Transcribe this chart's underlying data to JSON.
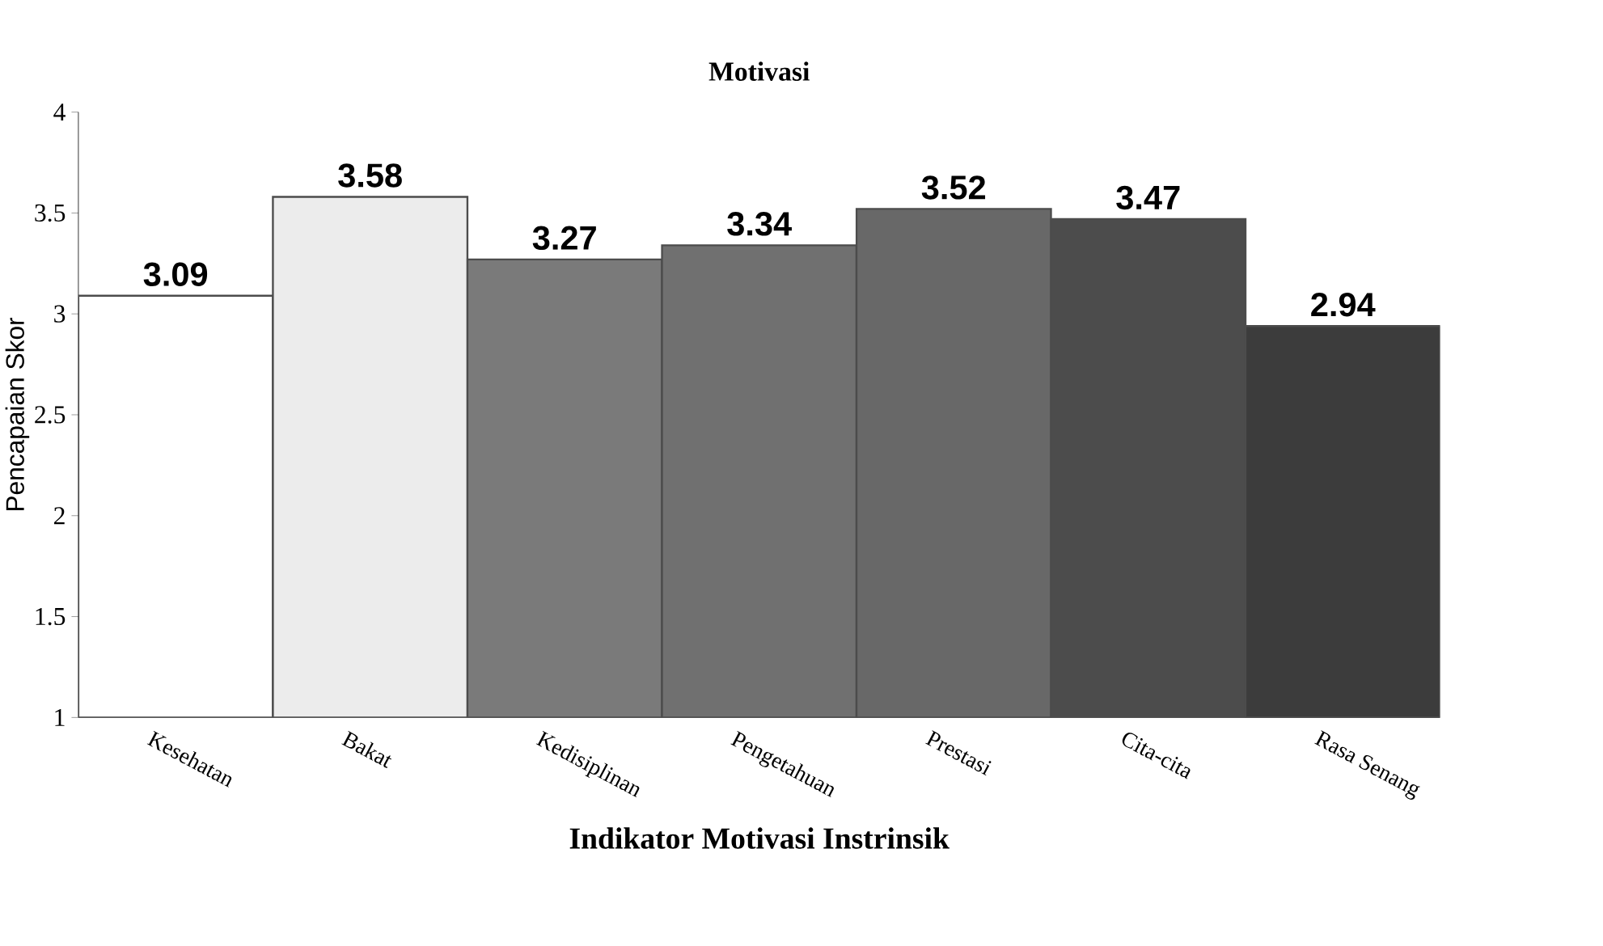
{
  "chart_data": {
    "type": "bar",
    "title": "Motivasi",
    "xlabel": "Indikator Motivasi Instrinsik",
    "ylabel": "Pencapaian Skor",
    "categories": [
      "Kesehatan",
      "Bakat",
      "Kedisiplinan",
      "Pengetahuan",
      "Prestasi",
      "Cita-cita",
      "Rasa Senang"
    ],
    "values": [
      3.09,
      3.58,
      3.27,
      3.34,
      3.52,
      3.47,
      2.94
    ],
    "colors": [
      "#ffffff",
      "#ececec",
      "#7a7a7a",
      "#707070",
      "#686868",
      "#4c4c4c",
      "#3c3c3c"
    ],
    "ylim": [
      1,
      4
    ],
    "yticks": [
      1,
      1.5,
      2,
      2.5,
      3,
      3.5,
      4
    ],
    "data_labels": true
  }
}
